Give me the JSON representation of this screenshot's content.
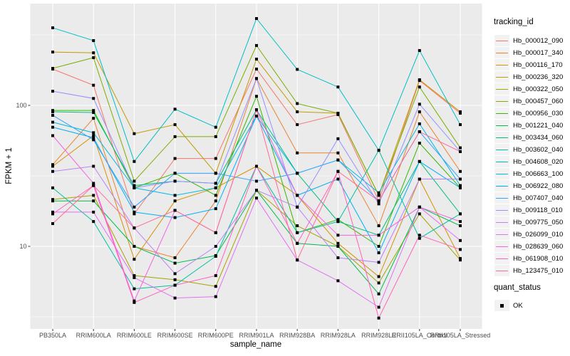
{
  "figure": {
    "background": "#FFFFFF",
    "panel_background": "#EBEBEB",
    "grid_color": "#FFFFFF",
    "tick_color": "#333333",
    "axis_text_color": "#4D4D4D",
    "point_color": "#000000"
  },
  "chart_data": {
    "type": "line",
    "title": "",
    "xlabel": "sample_name",
    "ylabel": "FPKM + 1",
    "y_scale": "log10",
    "ylim": [
      2.6,
      530
    ],
    "y_ticks": [
      10,
      100
    ],
    "y_minor_ticks": [
      3.162,
      31.62,
      316.2
    ],
    "grid": true,
    "legend_position": "right",
    "point_shape": "square",
    "categories": [
      "PB350LA",
      "RRIM600LA",
      "RRIM600LE",
      "RRIM600SE",
      "RRIM600PE",
      "RRIM901LA",
      "RRIM928BA",
      "RRIM928LA",
      "RRIM928LE",
      "RRII105LA_Control",
      "RRII105LA_Stressed"
    ],
    "series": [
      {
        "name": "Hb_000012_090",
        "color": "#F8766D",
        "values": [
          181,
          139,
          17,
          42,
          42,
          181,
          73,
          86,
          21,
          150,
          88
        ]
      },
      {
        "name": "Hb_000017_340",
        "color": "#EA8331",
        "values": [
          38,
          81,
          10,
          8.3,
          21,
          155,
          46,
          46,
          14,
          90,
          34
        ]
      },
      {
        "name": "Hb_000116_170",
        "color": "#D89000",
        "values": [
          37,
          61,
          8.1,
          21,
          26,
          37,
          23,
          10.5,
          6.1,
          30,
          8.2
        ]
      },
      {
        "name": "Hb_000236_320",
        "color": "#C49A00",
        "values": [
          239,
          236,
          63,
          73,
          33,
          213,
          90,
          88,
          23,
          152,
          90
        ]
      },
      {
        "name": "Hb_000322_050",
        "color": "#A3A500",
        "values": [
          21.5,
          23,
          6.2,
          5.8,
          5.2,
          25,
          14,
          10,
          5.5,
          17,
          8
        ]
      },
      {
        "name": "Hb_000457_060",
        "color": "#7CAE00",
        "values": [
          183,
          218,
          29,
          60,
          60,
          266,
          103,
          88,
          23,
          135,
          50
        ]
      },
      {
        "name": "Hb_000956_030",
        "color": "#39B600",
        "values": [
          92,
          92,
          26,
          33,
          23,
          116,
          12.5,
          15.5,
          10,
          54,
          26
        ]
      },
      {
        "name": "Hb_001221_040",
        "color": "#00BB4E",
        "values": [
          21,
          21,
          10,
          7.6,
          8.6,
          25,
          10.5,
          10,
          4.6,
          19,
          14
        ]
      },
      {
        "name": "Hb_003434_060",
        "color": "#00BF7D",
        "values": [
          90,
          89,
          27,
          29,
          28,
          93,
          33,
          15,
          12,
          40,
          17
        ]
      },
      {
        "name": "Hb_003602_040",
        "color": "#00C1A3",
        "values": [
          26,
          15,
          5,
          5.3,
          8.5,
          37,
          12.5,
          15,
          48,
          11.4,
          17
        ]
      },
      {
        "name": "Hb_004608_020",
        "color": "#00BFC4",
        "values": [
          355,
          288,
          40,
          94,
          70,
          413,
          180,
          135,
          48,
          245,
          73
        ]
      },
      {
        "name": "Hb_006663_100",
        "color": "#00BAE0",
        "values": [
          76,
          64,
          26,
          23,
          26,
          84,
          33,
          41,
          24,
          74,
          27
        ]
      },
      {
        "name": "Hb_006922_080",
        "color": "#00B0F6",
        "values": [
          70,
          59,
          17.5,
          16,
          18.5,
          84,
          23,
          30,
          9,
          40,
          26
        ]
      },
      {
        "name": "Hb_007407_040",
        "color": "#35A2FF",
        "values": [
          85,
          57,
          19,
          33,
          33,
          29,
          33,
          41,
          21,
          65,
          30
        ]
      },
      {
        "name": "Hb_009118_010",
        "color": "#9590FF",
        "values": [
          126,
          112,
          26,
          29,
          28,
          155,
          19,
          58,
          20,
          102,
          47
        ]
      },
      {
        "name": "Hb_009775_050",
        "color": "#BC81F8",
        "values": [
          34,
          37,
          13.5,
          6.4,
          10,
          25,
          19,
          8.3,
          7.7,
          30,
          30
        ]
      },
      {
        "name": "Hb_026099_010",
        "color": "#E26EF7",
        "values": [
          17.5,
          17.5,
          6,
          4.3,
          4.4,
          22,
          8,
          5.7,
          3.7,
          19,
          11
        ]
      },
      {
        "name": "Hb_028639_060",
        "color": "#F763E0",
        "values": [
          61,
          28,
          4.1,
          18,
          12.5,
          93,
          23,
          12,
          12,
          19,
          15
        ]
      },
      {
        "name": "Hb_061908_010",
        "color": "#FF62BC",
        "values": [
          17,
          27,
          4,
          5.3,
          6.2,
          37,
          10.5,
          34,
          3.1,
          12,
          9.5
        ]
      },
      {
        "name": "Hb_123475_010",
        "color": "#FF6A98",
        "values": [
          14.5,
          27,
          13.5,
          18,
          12.5,
          93,
          8,
          34,
          21,
          65,
          47
        ]
      }
    ]
  },
  "legend": {
    "color_title": "tracking_id",
    "shape_title": "quant_status",
    "shape_items": [
      {
        "label": "OK"
      }
    ]
  }
}
